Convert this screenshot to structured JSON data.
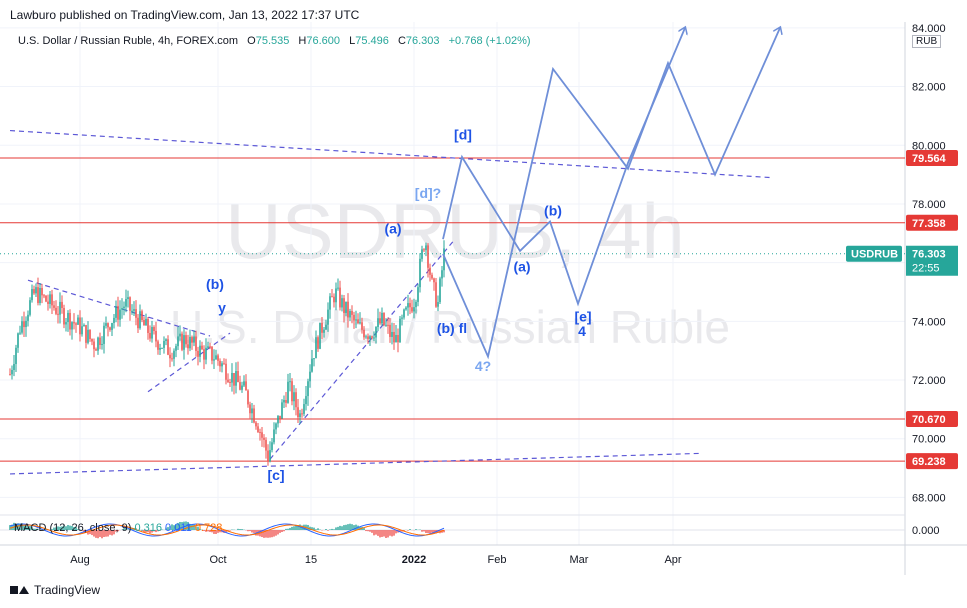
{
  "header": {
    "published": "Lawburo published on TradingView.com, Jan 13, 2022 17:37 UTC"
  },
  "legend": {
    "symbol": "U.S. Dollar / Russian Ruble, 4h, FOREX.com",
    "o_label": "O",
    "o": "75.535",
    "h_label": "H",
    "h": "76.600",
    "l_label": "L",
    "l": "75.496",
    "c_label": "C",
    "c": "76.303",
    "change": "+0.768 (+1.02%)"
  },
  "watermark": {
    "ticker": "USDRUB, 4h",
    "name": "U.S. Dollar / Russian Ruble"
  },
  "currency": "RUB",
  "footer": {
    "brand": "TradingView"
  },
  "colors": {
    "up": "#26a69a",
    "down": "#ef5350",
    "wave": "#1e53e5",
    "projection": "#6f8fd8",
    "hline": "#e53935",
    "trend": "#5c58d6"
  },
  "chart_data": {
    "type": "candlestick",
    "symbol": "USDRUB",
    "timeframe": "4h",
    "y_ticks": [
      "84.000",
      "82.000",
      "80.000",
      "78.000",
      "76.000",
      "74.000",
      "72.000",
      "70.000",
      "68.000"
    ],
    "ylim": [
      67.4,
      84.2
    ],
    "x_ticks": [
      {
        "label": "Aug",
        "t": 80
      },
      {
        "label": "Oct",
        "t": 218
      },
      {
        "label": "15",
        "t": 311
      },
      {
        "label": "2022",
        "t": 414
      },
      {
        "label": "Feb",
        "t": 497
      },
      {
        "label": "Mar",
        "t": 579
      },
      {
        "label": "Apr",
        "t": 673
      }
    ],
    "price_levels": [
      {
        "label": "79.564",
        "value": 79.564
      },
      {
        "label": "77.358",
        "value": 77.358
      },
      {
        "label": "70.670",
        "value": 70.67
      },
      {
        "label": "69.238",
        "value": 69.238
      }
    ],
    "current_price": {
      "label": "76.303",
      "value": 76.303,
      "ticker": "USDRUB",
      "countdown": "22:55"
    },
    "price_path": [
      [
        10,
        72.2
      ],
      [
        20,
        73.8
      ],
      [
        35,
        75.0
      ],
      [
        50,
        74.6
      ],
      [
        65,
        74.2
      ],
      [
        80,
        73.8
      ],
      [
        95,
        73.2
      ],
      [
        110,
        74.0
      ],
      [
        125,
        74.6
      ],
      [
        140,
        74.0
      ],
      [
        155,
        73.4
      ],
      [
        170,
        73.0
      ],
      [
        185,
        73.4
      ],
      [
        200,
        73.0
      ],
      [
        215,
        72.8
      ],
      [
        230,
        72.2
      ],
      [
        245,
        71.6
      ],
      [
        258,
        70.5
      ],
      [
        268,
        69.4
      ],
      [
        278,
        70.6
      ],
      [
        288,
        71.8
      ],
      [
        300,
        70.8
      ],
      [
        312,
        72.8
      ],
      [
        322,
        73.8
      ],
      [
        335,
        75.0
      ],
      [
        345,
        74.4
      ],
      [
        358,
        73.8
      ],
      [
        370,
        73.6
      ],
      [
        382,
        74.0
      ],
      [
        395,
        73.3
      ],
      [
        405,
        74.2
      ],
      [
        415,
        74.8
      ],
      [
        425,
        76.9
      ],
      [
        432,
        75.2
      ],
      [
        438,
        74.6
      ],
      [
        444,
        76.3
      ]
    ],
    "projections": [
      [
        [
          443,
          76.8
        ],
        [
          462,
          79.6
        ],
        [
          520,
          76.4
        ],
        [
          550,
          77.4
        ],
        [
          578,
          74.6
        ],
        [
          628,
          79.4
        ],
        [
          685,
          84.0
        ]
      ],
      [
        [
          443,
          76.3
        ],
        [
          488,
          72.8
        ],
        [
          553,
          82.6
        ],
        [
          628,
          79.2
        ],
        [
          668,
          82.8
        ],
        [
          715,
          79.0
        ],
        [
          780,
          84.0
        ]
      ]
    ],
    "trendlines": [
      {
        "from": [
          10,
          80.5
        ],
        "to": [
          770,
          78.9
        ]
      },
      {
        "from": [
          28,
          75.4
        ],
        "to": [
          210,
          73.5
        ]
      },
      {
        "from": [
          148,
          71.6
        ],
        "to": [
          230,
          73.6
        ]
      },
      {
        "from": [
          270,
          69.3
        ],
        "to": [
          455,
          76.8
        ]
      },
      {
        "from": [
          10,
          68.8
        ],
        "to": [
          700,
          69.5
        ]
      }
    ],
    "wave_labels": [
      {
        "text": "[d]",
        "t": 463,
        "y": 80.2,
        "style": "dark"
      },
      {
        "text": "[d]?",
        "t": 428,
        "y": 78.2,
        "style": "light"
      },
      {
        "text": "(a)",
        "t": 393,
        "y": 77.0,
        "style": "dark"
      },
      {
        "text": "(b)",
        "t": 553,
        "y": 77.6,
        "style": "dark"
      },
      {
        "text": "(a)",
        "t": 522,
        "y": 75.7,
        "style": "dark"
      },
      {
        "text": "(b)",
        "t": 215,
        "y": 75.1,
        "style": "dark"
      },
      {
        "text": "y",
        "t": 222,
        "y": 74.3,
        "style": "dark"
      },
      {
        "text": "(b) fl",
        "t": 452,
        "y": 73.6,
        "style": "dark"
      },
      {
        "text": "[e]",
        "t": 583,
        "y": 74.0,
        "style": "dark"
      },
      {
        "text": "4",
        "t": 582,
        "y": 73.5,
        "style": "dark"
      },
      {
        "text": "4?",
        "t": 483,
        "y": 72.3,
        "style": "light"
      },
      {
        "text": "[c]",
        "t": 276,
        "y": 68.6,
        "style": "dark"
      }
    ],
    "indicator": {
      "name": "MACD",
      "params": "(12, 26, close, 9)",
      "values": [
        "0.316",
        "0.011",
        "0.728"
      ],
      "zero_label": "0.000"
    }
  }
}
